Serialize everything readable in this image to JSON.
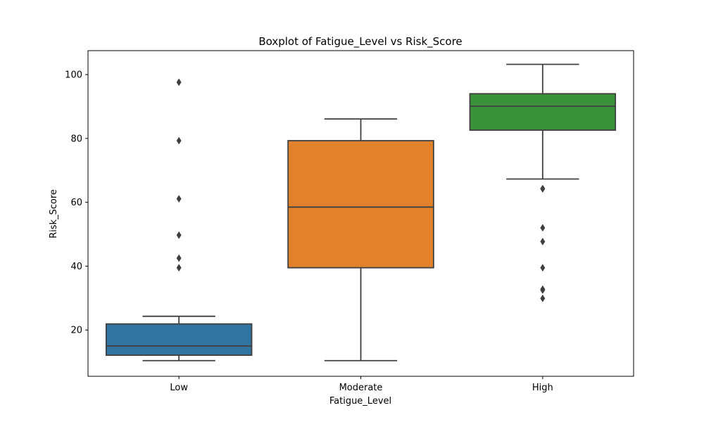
{
  "chart_data": {
    "type": "box",
    "title": "Boxplot of Fatigue_Level vs Risk_Score",
    "xlabel": "Fatigue_Level",
    "ylabel": "Risk_Score",
    "ylim": [
      5.5,
      107.5
    ],
    "yticks": [
      20,
      40,
      60,
      80,
      100
    ],
    "grid": false,
    "categories": [
      "Low",
      "Moderate",
      "High"
    ],
    "boxes": [
      {
        "category": "Low",
        "color": "#3274a1",
        "q1": 12.1,
        "median": 15.0,
        "q3": 21.9,
        "whisker_low": 10.4,
        "whisker_high": 24.3,
        "outliers": [
          97.6,
          79.3,
          61.1,
          49.7,
          42.5,
          39.5
        ]
      },
      {
        "category": "Moderate",
        "color": "#e1812c",
        "q1": 39.5,
        "median": 58.5,
        "q3": 79.3,
        "whisker_low": 10.4,
        "whisker_high": 86.1,
        "outliers": []
      },
      {
        "category": "High",
        "color": "#3a923a",
        "q1": 82.6,
        "median": 90.1,
        "q3": 94.0,
        "whisker_low": 67.3,
        "whisker_high": 103.2,
        "outliers": [
          64.3,
          64.2,
          52.0,
          47.7,
          39.5,
          32.8,
          32.5,
          29.9
        ]
      }
    ]
  }
}
